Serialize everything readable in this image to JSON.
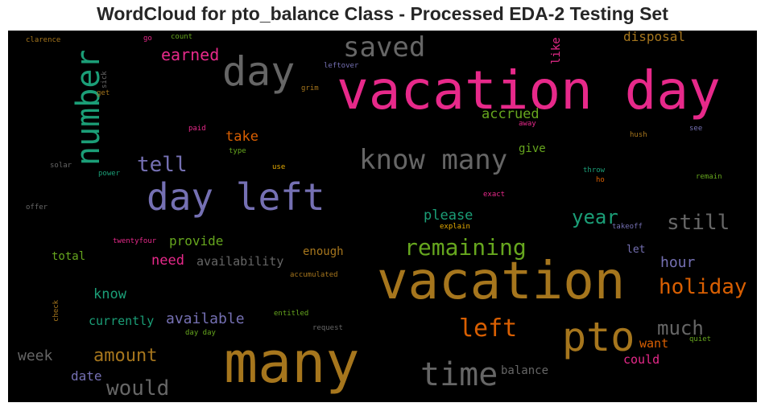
{
  "title": "WordCloud for pto_balance Class - Processed EDA-2 Testing Set",
  "words": [
    {
      "text": "vacation day",
      "color": "#e7298a"
    },
    {
      "text": "vacation",
      "color": "#a6761d"
    },
    {
      "text": "many",
      "color": "#a6761d"
    },
    {
      "text": "day left",
      "color": "#7570b3"
    },
    {
      "text": "day",
      "color": "#666666"
    },
    {
      "text": "pto",
      "color": "#a6761d"
    },
    {
      "text": "number",
      "color": "#1b9e77"
    },
    {
      "text": "time",
      "color": "#666666"
    },
    {
      "text": "know many",
      "color": "#666666"
    },
    {
      "text": "saved",
      "color": "#666666"
    },
    {
      "text": "remaining",
      "color": "#66a61e"
    },
    {
      "text": "left",
      "color": "#d95f02"
    },
    {
      "text": "holiday",
      "color": "#d95f02"
    },
    {
      "text": "would",
      "color": "#666666"
    },
    {
      "text": "still",
      "color": "#666666"
    },
    {
      "text": "much",
      "color": "#666666"
    },
    {
      "text": "year",
      "color": "#1b9e77"
    },
    {
      "text": "tell",
      "color": "#7570b3"
    },
    {
      "text": "amount",
      "color": "#a6761d"
    },
    {
      "text": "earned",
      "color": "#e7298a"
    },
    {
      "text": "available",
      "color": "#7570b3"
    },
    {
      "text": "disposal",
      "color": "#a6761d"
    },
    {
      "text": "hour",
      "color": "#7570b3"
    },
    {
      "text": "accrued",
      "color": "#66a61e"
    },
    {
      "text": "please",
      "color": "#1b9e77"
    },
    {
      "text": "take",
      "color": "#d95f02"
    },
    {
      "text": "provide",
      "color": "#66a61e"
    },
    {
      "text": "need",
      "color": "#e7298a"
    },
    {
      "text": "availability",
      "color": "#666666"
    },
    {
      "text": "know",
      "color": "#1b9e77"
    },
    {
      "text": "week",
      "color": "#666666"
    },
    {
      "text": "date",
      "color": "#7570b3"
    },
    {
      "text": "currently",
      "color": "#1b9e77"
    },
    {
      "text": "want",
      "color": "#d95f02"
    },
    {
      "text": "could",
      "color": "#e7298a"
    },
    {
      "text": "balance",
      "color": "#666666"
    },
    {
      "text": "give",
      "color": "#66a61e"
    },
    {
      "text": "like",
      "color": "#e7298a"
    },
    {
      "text": "total",
      "color": "#66a61e"
    },
    {
      "text": "enough",
      "color": "#a6761d"
    },
    {
      "text": "let",
      "color": "#7570b3"
    },
    {
      "text": "clarence",
      "color": "#a6761d"
    },
    {
      "text": "go",
      "color": "#e7298a"
    },
    {
      "text": "count",
      "color": "#66a61e"
    },
    {
      "text": "leftover",
      "color": "#7570b3"
    },
    {
      "text": "grim",
      "color": "#a6761d"
    },
    {
      "text": "sick",
      "color": "#666666"
    },
    {
      "text": "get",
      "color": "#a6761d"
    },
    {
      "text": "paid",
      "color": "#e7298a"
    },
    {
      "text": "type",
      "color": "#66a61e"
    },
    {
      "text": "solar",
      "color": "#666666"
    },
    {
      "text": "power",
      "color": "#1b9e77"
    },
    {
      "text": "use",
      "color": "#e6ab02"
    },
    {
      "text": "away",
      "color": "#e7298a"
    },
    {
      "text": "hush",
      "color": "#a6761d"
    },
    {
      "text": "see",
      "color": "#7570b3"
    },
    {
      "text": "throw",
      "color": "#1b9e77"
    },
    {
      "text": "ho",
      "color": "#d95f02"
    },
    {
      "text": "remain",
      "color": "#66a61e"
    },
    {
      "text": "exact",
      "color": "#e7298a"
    },
    {
      "text": "offer",
      "color": "#666666"
    },
    {
      "text": "twentyfour",
      "color": "#e7298a"
    },
    {
      "text": "explain",
      "color": "#e6ab02"
    },
    {
      "text": "takeoff",
      "color": "#7570b3"
    },
    {
      "text": "accumulated",
      "color": "#a6761d"
    },
    {
      "text": "check",
      "color": "#a6761d"
    },
    {
      "text": "entitled",
      "color": "#66a61e"
    },
    {
      "text": "day day",
      "color": "#66a61e"
    },
    {
      "text": "request",
      "color": "#666666"
    },
    {
      "text": "quiet",
      "color": "#66a61e"
    }
  ]
}
